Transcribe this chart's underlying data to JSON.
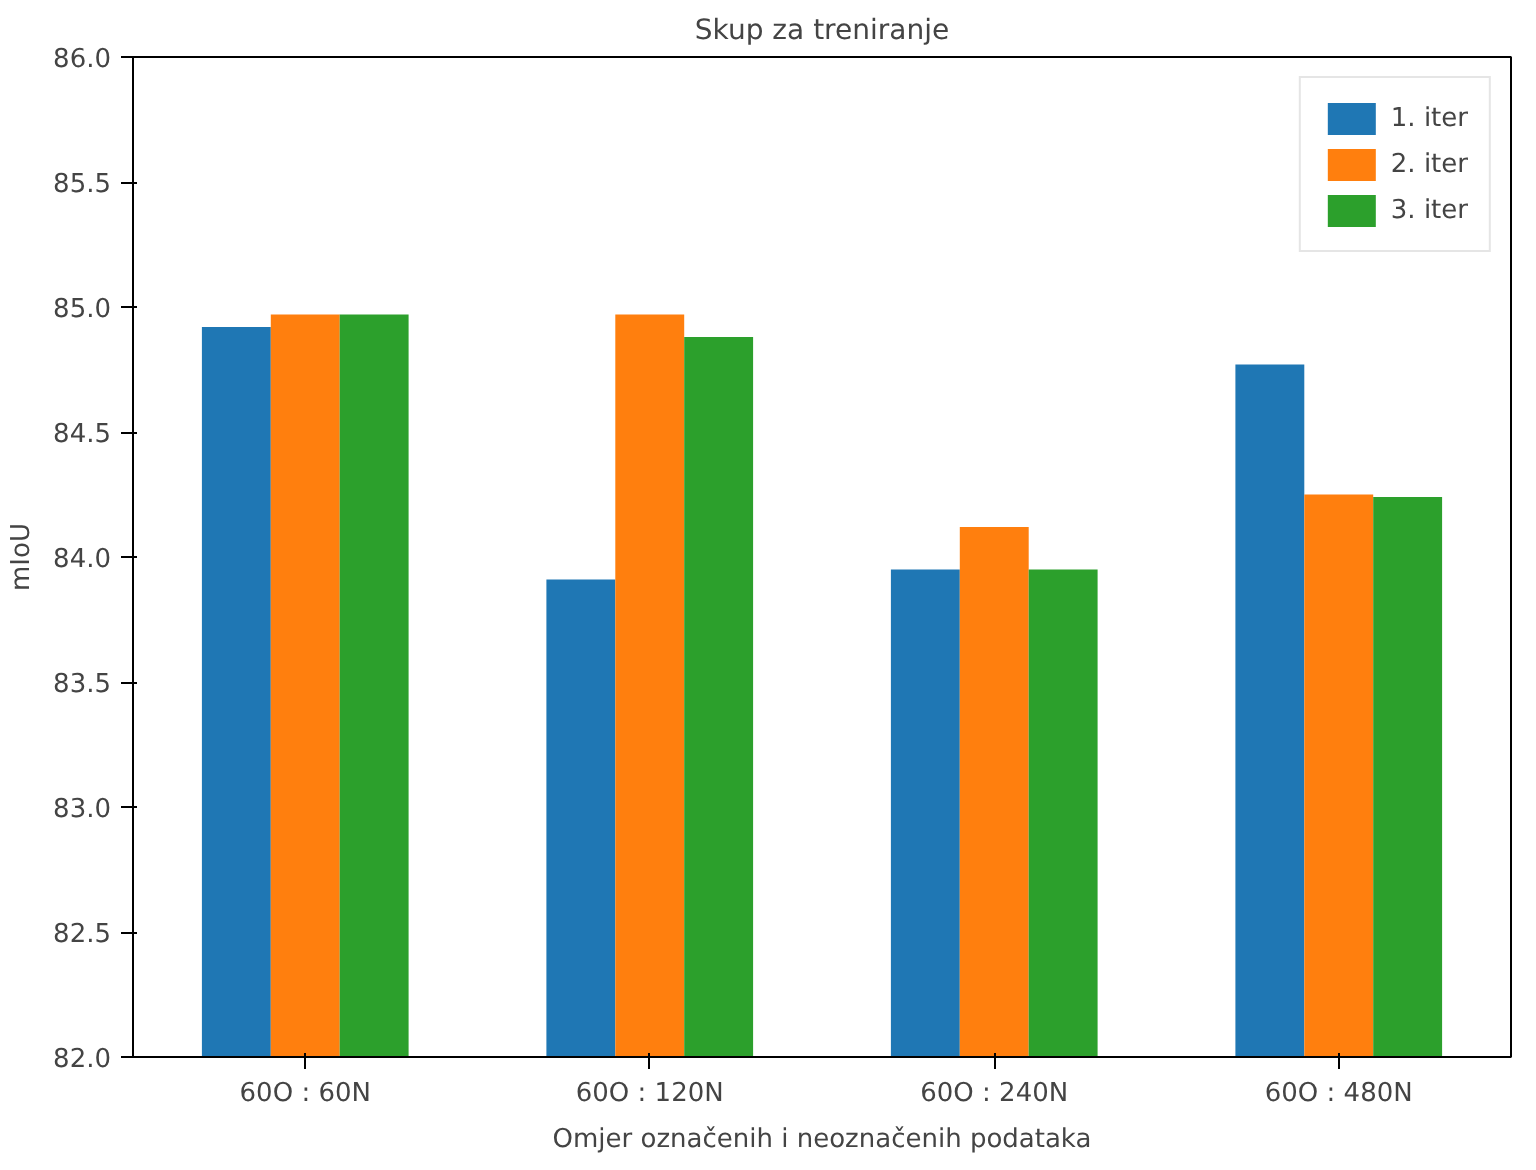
{
  "chart_data": {
    "type": "bar",
    "title": "Skup za treniranje",
    "xlabel": "Omjer označenih i neoznačenih podataka",
    "ylabel": "mIoU",
    "categories": [
      "60O : 60N",
      "60O : 120N",
      "60O : 240N",
      "60O : 480N"
    ],
    "series": [
      {
        "name": "1. iter",
        "color": "#1f77b4",
        "values": [
          84.92,
          83.91,
          83.95,
          84.77
        ]
      },
      {
        "name": "2. iter",
        "color": "#ff7f0e",
        "values": [
          84.97,
          84.97,
          84.12,
          84.25
        ]
      },
      {
        "name": "3. iter",
        "color": "#2ca02c",
        "values": [
          84.97,
          84.88,
          83.95,
          84.24
        ]
      }
    ],
    "ylim": [
      82.0,
      86.0
    ],
    "yticks": [
      {
        "value": 82,
        "label": "82.0"
      },
      {
        "value": 82.5,
        "label": "82.5"
      },
      {
        "value": 83,
        "label": "83.0"
      },
      {
        "value": 83.5,
        "label": "83.5"
      },
      {
        "value": 84,
        "label": "84.0"
      },
      {
        "value": 84.5,
        "label": "84.5"
      },
      {
        "value": 85,
        "label": "85.0"
      },
      {
        "value": 85.5,
        "label": "85.5"
      },
      {
        "value": 86,
        "label": "86.0"
      }
    ],
    "legend": "top right",
    "grid": false
  }
}
